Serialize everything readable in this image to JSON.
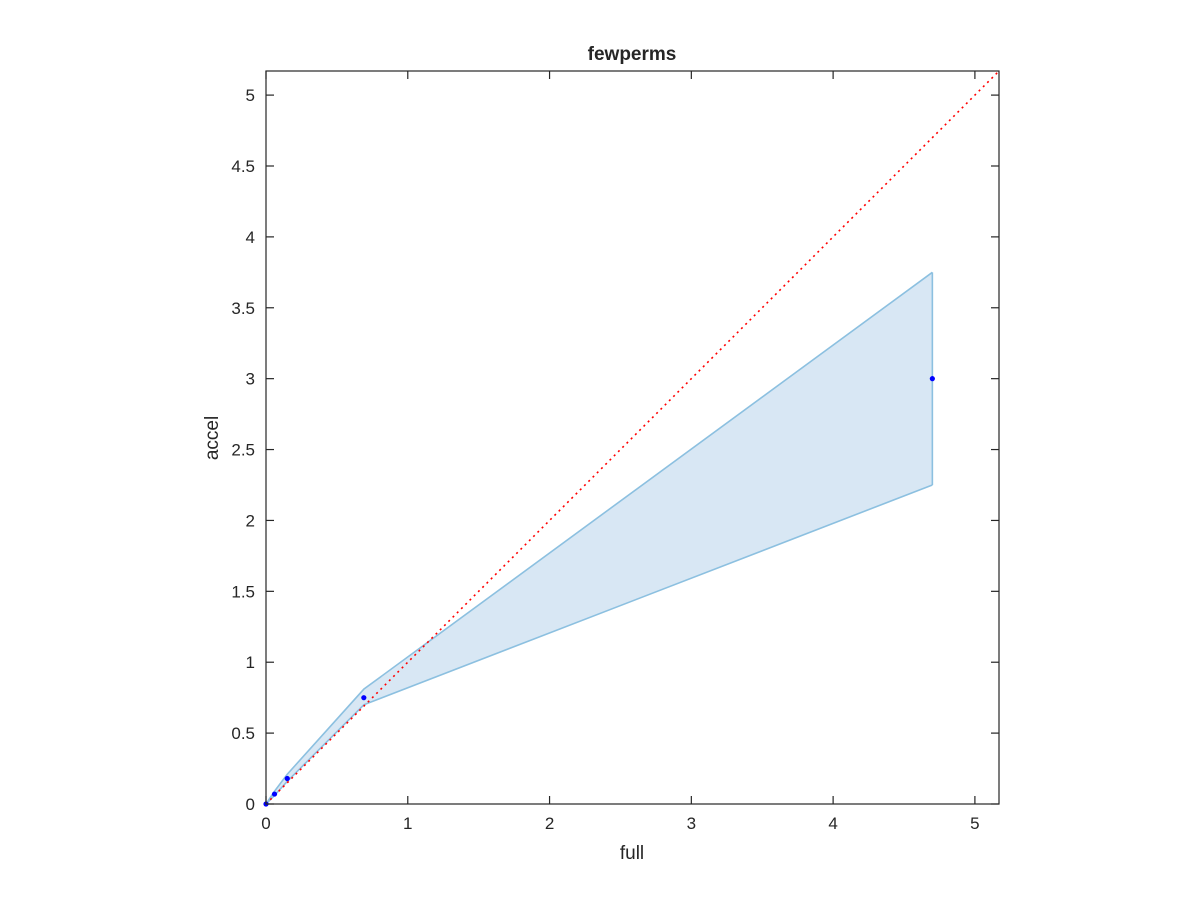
{
  "chart_data": {
    "type": "scatter",
    "title": "fewperms",
    "xlabel": "full",
    "ylabel": "accel",
    "xlim": [
      0,
      5.17
    ],
    "ylim": [
      0,
      5.17
    ],
    "xticks": [
      "0",
      "1",
      "2",
      "3",
      "4",
      "5"
    ],
    "yticks": [
      "0",
      "0.5",
      "1",
      "1.5",
      "2",
      "2.5",
      "3",
      "3.5",
      "4",
      "4.5",
      "5"
    ],
    "grid": false,
    "box": true,
    "series": [
      {
        "kind": "band",
        "x": [
          0,
          0.06,
          0.15,
          0.69,
          4.7
        ],
        "upper": [
          0,
          0.09,
          0.21,
          0.81,
          3.75
        ],
        "lower": [
          0,
          0.06,
          0.16,
          0.7,
          2.25
        ],
        "fill": "#d8e7f4",
        "stroke": "#8cc0e0"
      },
      {
        "kind": "points",
        "x": [
          0,
          0.06,
          0.15,
          0.69,
          4.7
        ],
        "y": [
          0,
          0.07,
          0.18,
          0.75,
          3.0
        ],
        "color": "#0000ff"
      },
      {
        "kind": "reference-line",
        "x": [
          0,
          5.17
        ],
        "y": [
          0,
          5.17
        ],
        "color": "#ff0000",
        "style": "dotted"
      }
    ]
  }
}
